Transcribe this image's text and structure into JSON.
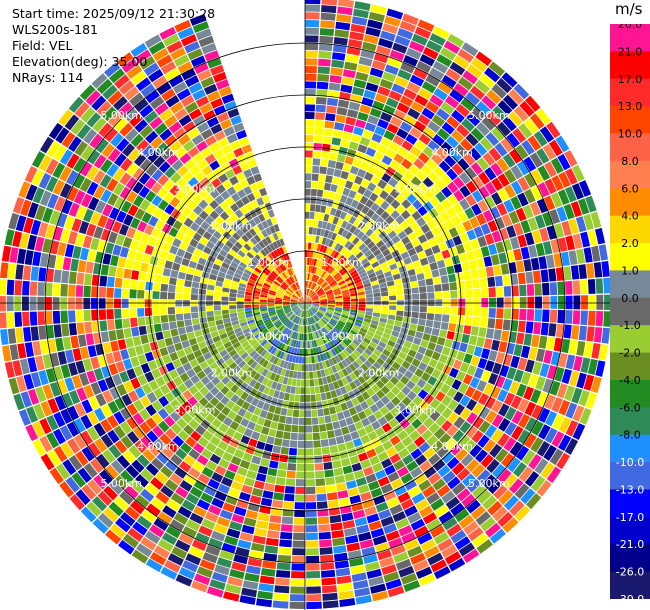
{
  "info": {
    "start_time": "Start time: 2025/09/12 21:30:28",
    "instrument": "WLS200s-181",
    "field": "Field: VEL",
    "elevation": "Elevation(deg): 35.00",
    "nrays": "NRays: 114"
  },
  "chart_data": {
    "type": "heatmap",
    "projection": "polar-ppi",
    "title": "",
    "field": "VEL",
    "units": "m/s",
    "nrays": 114,
    "elevation_deg": 35.0,
    "range_rings_km": [
      1,
      2,
      3,
      4,
      5
    ],
    "ring_labels": [
      "1.00km",
      "2.00km",
      "3.00km",
      "4.00km",
      "5.00km"
    ],
    "max_range_km": 5.9,
    "sector_gap_deg": [
      340,
      360
    ],
    "colorbar": {
      "label": "m/s",
      "ticks": [
        "26.0",
        "21.0",
        "17.0",
        "13.0",
        "10.0",
        "8.0",
        "6.0",
        "4.0",
        "2.0",
        "1.0",
        "0.0",
        "-1.0",
        "-2.0",
        "-4.0",
        "-6.0",
        "-8.0",
        "-10.0",
        "-13.0",
        "-17.0",
        "-21.0",
        "-26.0",
        "-30.0"
      ],
      "colors": [
        "#ff1493",
        "#ff0000",
        "#ff2a2a",
        "#ff4500",
        "#ff6347",
        "#ff7f50",
        "#ff8c00",
        "#ffd700",
        "#ffff00",
        "#778899",
        "#696969",
        "#9acd32",
        "#6b8e23",
        "#228b22",
        "#2e8b57",
        "#1e90ff",
        "#4169e1",
        "#0000ff",
        "#0000cd",
        "#00008b",
        "#191970"
      ]
    },
    "dominant_pattern": {
      "inner_ring_km": [
        0,
        1.1
      ],
      "inner_colors_north": [
        "#ff0000",
        "#ff4500",
        "#ffd700"
      ],
      "inner_colors_south": [
        "#228b22",
        "#4169e1",
        "#9acd32"
      ],
      "mid_ring_km": [
        1.1,
        2.8
      ],
      "mid_colors_north": [
        "#778899",
        "#696969",
        "#ffff00"
      ],
      "mid_colors_south": [
        "#9acd32",
        "#6b8e23",
        "#778899"
      ],
      "noise_start_km": 3.5
    }
  }
}
